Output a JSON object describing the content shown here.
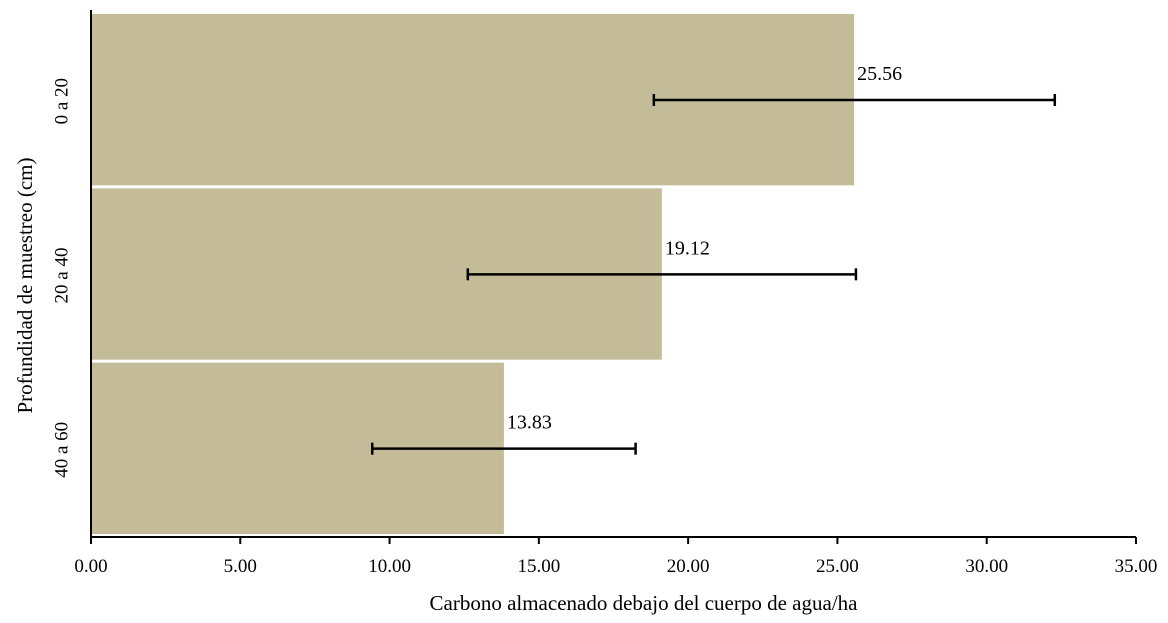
{
  "chart_data": {
    "type": "bar",
    "orientation": "horizontal",
    "categories": [
      "0 a 20",
      "20 a 40",
      "40 a 60"
    ],
    "values": [
      25.56,
      19.12,
      13.83
    ],
    "data_labels": [
      "25.56",
      "19.12",
      "13.83"
    ],
    "error_bars": [
      {
        "low": 18.85,
        "high": 32.28
      },
      {
        "low": 12.62,
        "high": 25.62
      },
      {
        "low": 9.42,
        "high": 18.24
      }
    ],
    "title": "",
    "xlabel": "Carbono almacenado debajo del cuerpo de agua/ha",
    "ylabel": "Profundidad de muestreo (cm)",
    "xlim": [
      0,
      35
    ],
    "x_ticks": [
      0,
      5,
      10,
      15,
      20,
      25,
      30,
      35
    ],
    "x_tick_labels": [
      "0.00",
      "5.00",
      "10.00",
      "15.00",
      "20.00",
      "25.00",
      "30.00",
      "35.00"
    ],
    "grid": false,
    "bar_color": "#c4bc98",
    "error_bar_color": "#000000"
  }
}
